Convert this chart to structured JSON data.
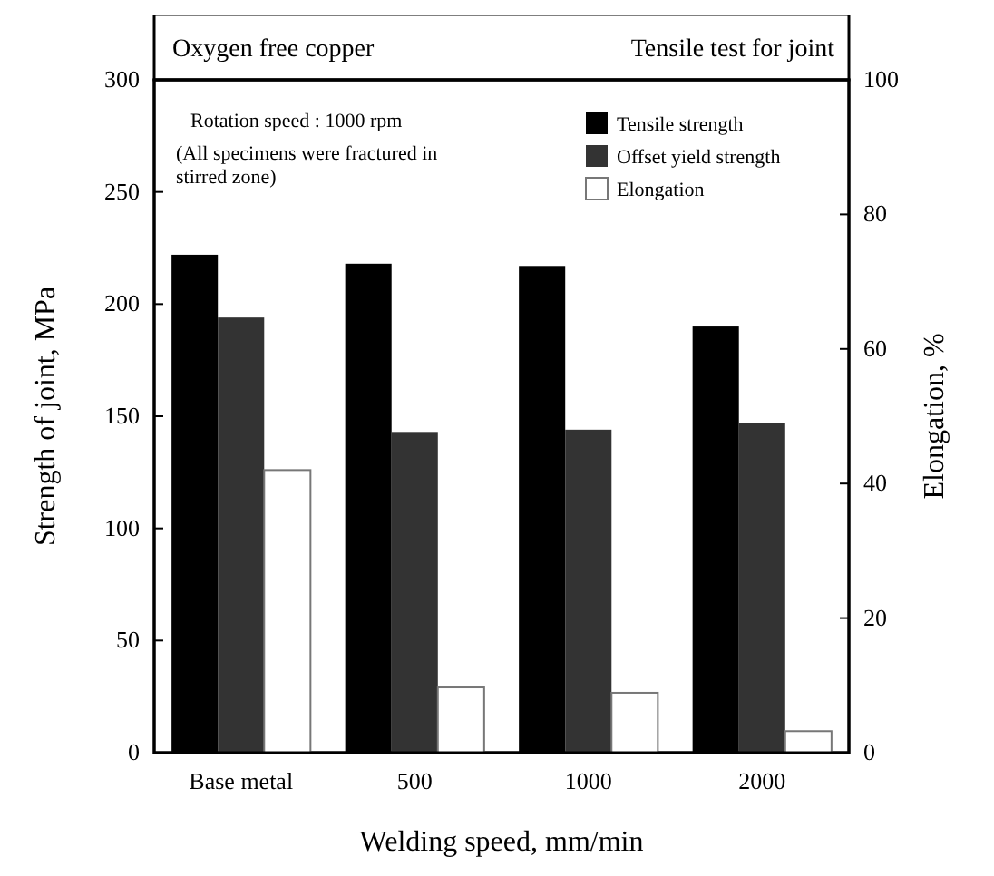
{
  "chart_data": {
    "type": "bar",
    "title": "Oxygen free copper",
    "subtitle": "Tensile test for joint",
    "xlabel": "Welding speed, mm/min",
    "ylabel": "Strength of joint, MPa",
    "y2label": "Elongation, %",
    "categories": [
      "Base metal",
      "500",
      "1000",
      "2000"
    ],
    "series": [
      {
        "name": "Tensile strength",
        "color": "#000000",
        "values": [
          222,
          218,
          217,
          190
        ]
      },
      {
        "name": "Offset yield strength",
        "color": "#333333",
        "values": [
          194,
          143,
          144,
          147
        ]
      },
      {
        "name": "Elongation",
        "color": "#ffffff",
        "values": [
          42,
          9.7,
          8.9,
          3.2
        ],
        "axis": "y2"
      }
    ],
    "ylim": [
      0,
      300
    ],
    "yticks": [
      0,
      50,
      100,
      150,
      200,
      250,
      300
    ],
    "y2lim": [
      0,
      100
    ],
    "y2ticks": [
      0,
      20,
      40,
      60,
      80,
      100
    ],
    "annotations": [
      "Rotation speed : 1000 rpm",
      "(All specimens were fractured in stirred zone)"
    ],
    "legend": "top right",
    "grid": false
  }
}
